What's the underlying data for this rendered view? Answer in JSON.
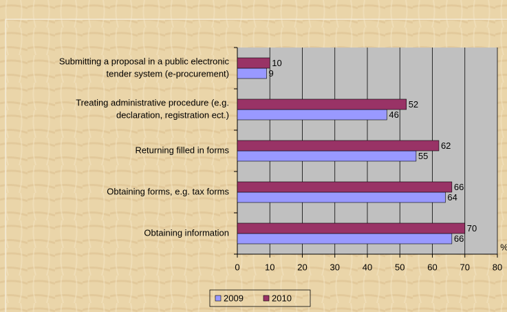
{
  "chart_data": {
    "type": "bar",
    "orientation": "horizontal",
    "categories": [
      [
        "Submitting a proposal in a public electronic",
        "tender system (e-procurement)"
      ],
      [
        "Treating administrative procedure (e.g.",
        "declaration, registration ect.)"
      ],
      [
        "Returning filled in forms"
      ],
      [
        "Obtaining forms, e.g. tax forms"
      ],
      [
        "Obtaining information"
      ]
    ],
    "series": [
      {
        "name": "2009",
        "color": "#9999ff",
        "values": [
          9,
          46,
          55,
          64,
          66
        ]
      },
      {
        "name": "2010",
        "color": "#993366",
        "values": [
          10,
          52,
          62,
          66,
          70
        ]
      }
    ],
    "x_label": "%",
    "xlim": [
      0,
      80
    ],
    "xticks": [
      0,
      10,
      20,
      30,
      40,
      50,
      60,
      70,
      80
    ],
    "grid": true,
    "legend": "bottom"
  }
}
